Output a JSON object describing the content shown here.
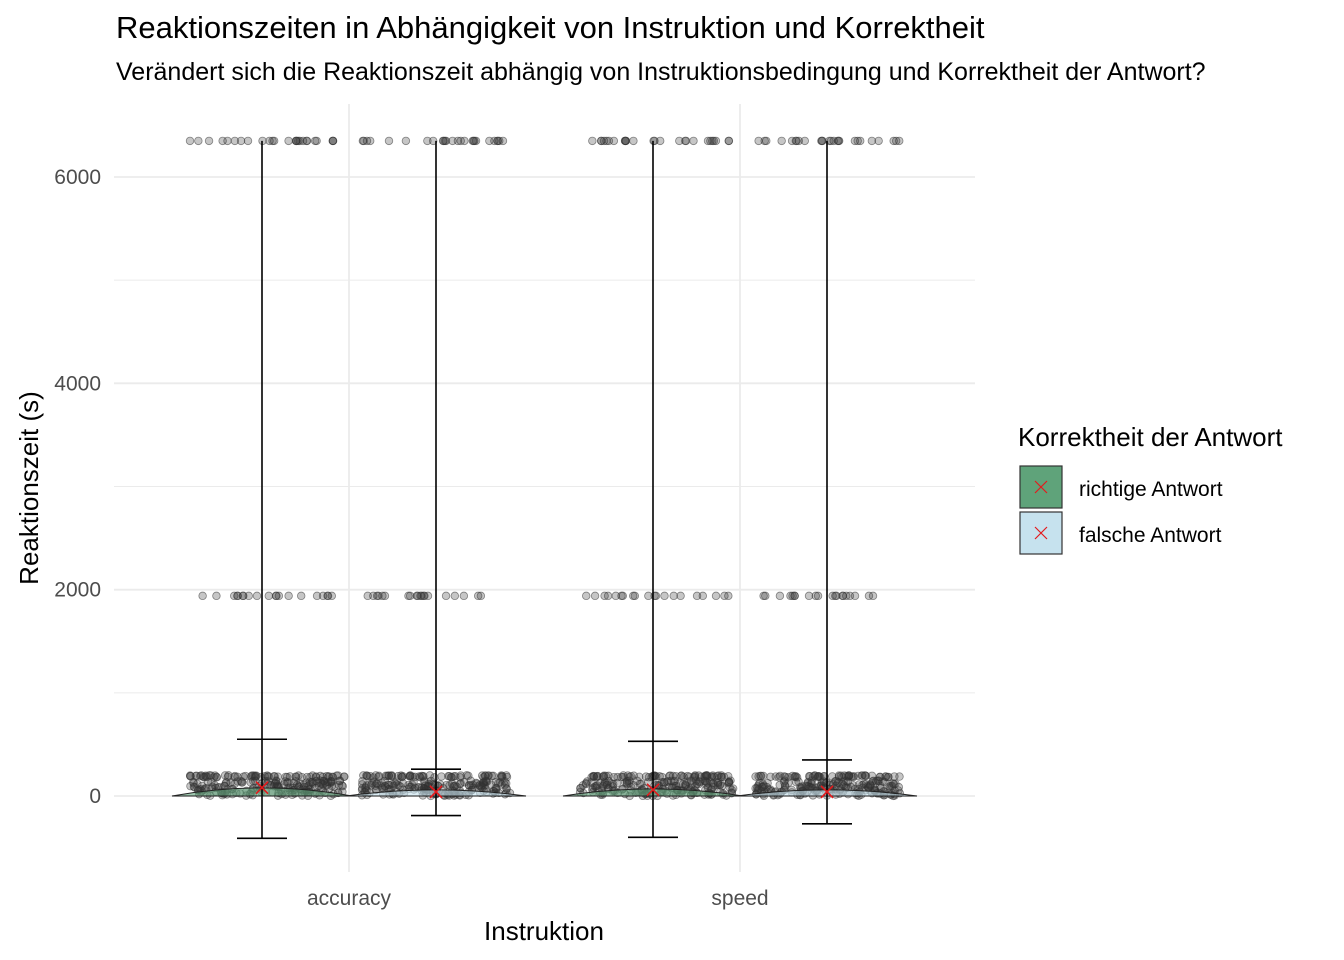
{
  "chart_data": {
    "type": "scatter",
    "title": "Reaktionszeiten in Abhängigkeit von Instruktion und Korrektheit",
    "subtitle": "Verändert sich die Reaktionszeit abhängig von Instruktionsbedingung und Korrektheit der Antwort?",
    "xlabel": "Instruktion",
    "ylabel": "Reaktionszeit (s)",
    "categories": [
      "accuracy",
      "speed"
    ],
    "ylim": [
      -700,
      6420
    ],
    "yticks": [
      0,
      2000,
      4000,
      6000
    ],
    "grid": true,
    "legend": {
      "title": "Korrektheit der Antwort",
      "position": "right",
      "entries": [
        {
          "label": "richtige Antwort",
          "color": "#5fa37a"
        },
        {
          "label": "falsche Antwort",
          "color": "#c6e2ee"
        }
      ]
    },
    "mean_marker_color": "#e41a1c",
    "point_color": "#333333",
    "series": [
      {
        "name": "richtige Antwort",
        "category": "accuracy",
        "mean": 80,
        "error_low": -410,
        "error_high": 550,
        "whisker_max": 6350
      },
      {
        "name": "falsche Antwort",
        "category": "accuracy",
        "mean": 40,
        "error_low": -190,
        "error_high": 260,
        "whisker_max": 6350
      },
      {
        "name": "richtige Antwort",
        "category": "speed",
        "mean": 60,
        "error_low": -400,
        "error_high": 530,
        "whisker_max": 6350
      },
      {
        "name": "falsche Antwort",
        "category": "speed",
        "mean": 40,
        "error_low": -270,
        "error_high": 350,
        "whisker_max": 6350
      }
    ],
    "outlier_levels": [
      6350,
      1940,
      200
    ]
  }
}
